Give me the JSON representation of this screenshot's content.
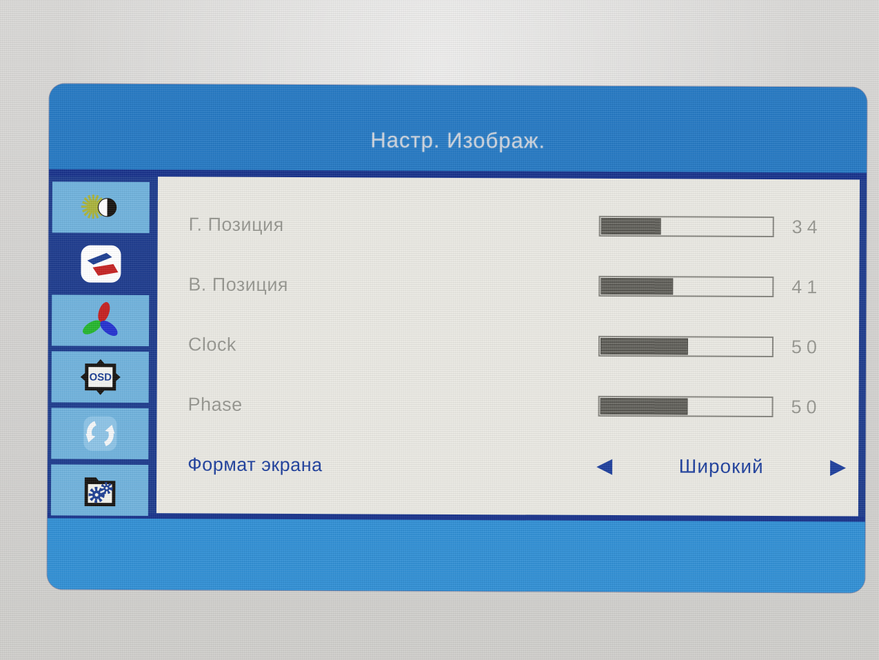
{
  "window": {
    "title": "Настр. Изображ."
  },
  "sidebar": {
    "items": [
      {
        "id": "brightness",
        "icon": "brightness-contrast-icon",
        "selected": false
      },
      {
        "id": "image-settings",
        "icon": "image-geometry-icon",
        "selected": true
      },
      {
        "id": "color",
        "icon": "color-rgb-icon",
        "selected": false
      },
      {
        "id": "osd-settings",
        "icon": "osd-screen-icon",
        "label": "OSD",
        "selected": false
      },
      {
        "id": "reset",
        "icon": "reset-arrows-icon",
        "selected": false
      },
      {
        "id": "misc",
        "icon": "misc-gears-icon",
        "selected": false
      }
    ]
  },
  "menu": {
    "rows": [
      {
        "label": "Г. Позиция",
        "type": "slider",
        "value": 34,
        "max": 100,
        "disabled": true
      },
      {
        "label": "В. Позиция",
        "type": "slider",
        "value": 41,
        "max": 100,
        "disabled": true
      },
      {
        "label": "Clock",
        "type": "slider",
        "value": 50,
        "max": 100,
        "disabled": true
      },
      {
        "label": "Phase",
        "type": "slider",
        "value": 50,
        "max": 100,
        "disabled": true
      },
      {
        "label": "Формат экрана",
        "type": "choice",
        "value": "Широкий",
        "left_arrow": "◀",
        "right_arrow": "▶",
        "disabled": false
      }
    ]
  },
  "colors": {
    "header_blue": "#2478c2",
    "footer_blue": "#2f8ed4",
    "navy": "#1c3a8c",
    "separator_navy": "#17318a",
    "content_bg": "#e9e8e2",
    "tile_blue": "#6fb2dc",
    "disabled_text": "#95958e",
    "active_text": "#1d3e9c",
    "slider_fill": "#55544e",
    "title_text": "#ccd3dd"
  }
}
